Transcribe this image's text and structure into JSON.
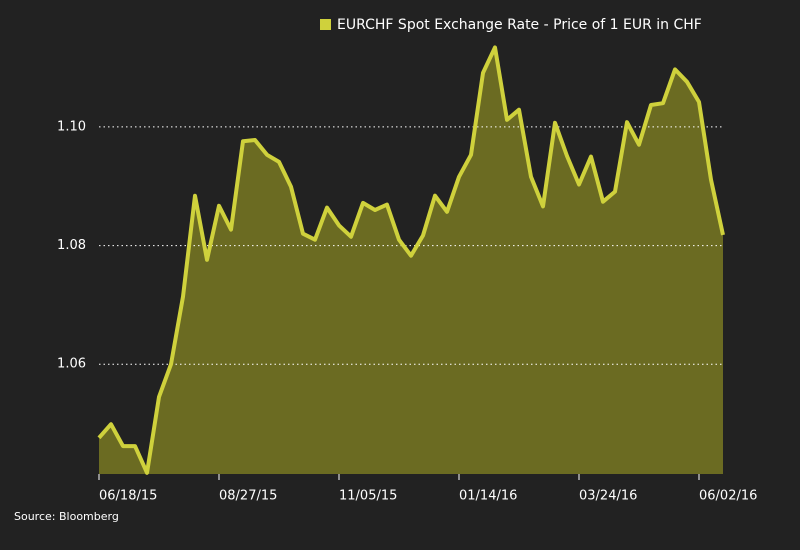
{
  "chart_data": {
    "type": "area",
    "series": [
      {
        "name": "EURCHF Spot Exchange Rate - Price of 1 EUR in CHF",
        "color": "#cfd13c",
        "fill": "#6b6b22",
        "values": [
          1.0476,
          1.0499,
          1.0462,
          1.0462,
          1.0417,
          1.0545,
          1.06,
          1.0714,
          1.0884,
          1.0776,
          1.0867,
          1.0827,
          1.0976,
          1.0978,
          1.0953,
          1.0941,
          1.0899,
          1.082,
          1.081,
          1.0864,
          1.0834,
          1.0815,
          1.0872,
          1.086,
          1.0869,
          1.081,
          1.0783,
          1.0817,
          1.0884,
          1.0857,
          1.0916,
          1.0953,
          1.1091,
          1.1134,
          1.1012,
          1.1029,
          1.0916,
          1.0866,
          1.1007,
          1.0951,
          1.0903,
          1.095,
          1.0874,
          1.0891,
          1.1008,
          1.097,
          1.1037,
          1.104,
          1.1097,
          1.1076,
          1.1042,
          1.0911,
          1.0818
        ]
      }
    ],
    "x": [
      "06/18/15",
      "06/25/15",
      "07/02/15",
      "07/09/15",
      "07/16/15",
      "07/23/15",
      "07/30/15",
      "08/06/15",
      "08/13/15",
      "08/20/15",
      "08/27/15",
      "09/03/15",
      "09/10/15",
      "09/17/15",
      "09/24/15",
      "10/01/15",
      "10/08/15",
      "10/15/15",
      "10/22/15",
      "10/29/15",
      "11/05/15",
      "11/12/15",
      "11/19/15",
      "11/26/15",
      "12/03/15",
      "12/10/15",
      "12/17/15",
      "12/24/15",
      "12/31/15",
      "01/07/16",
      "01/14/16",
      "01/21/16",
      "01/28/16",
      "02/04/16",
      "02/11/16",
      "02/18/16",
      "02/25/16",
      "03/03/16",
      "03/10/16",
      "03/17/16",
      "03/24/16",
      "03/31/16",
      "04/07/16",
      "04/14/16",
      "04/21/16",
      "04/28/16",
      "05/05/16",
      "05/12/16",
      "05/19/16",
      "05/26/16",
      "06/02/16",
      "06/09/16",
      "06/16/16"
    ],
    "xlim": [
      "06/18/15",
      "06/16/16"
    ],
    "xticks": [
      "06/18/15",
      "08/27/15",
      "11/05/15",
      "01/14/16",
      "03/24/16",
      "06/02/16"
    ],
    "ylim": [
      1.0415,
      1.116
    ],
    "yticks": [
      {
        "value": 1.06,
        "label": "1.06"
      },
      {
        "value": 1.08,
        "label": "1.08"
      },
      {
        "value": 1.1,
        "label": "1.10"
      }
    ],
    "grid": true,
    "source": "Source: Bloomberg"
  }
}
